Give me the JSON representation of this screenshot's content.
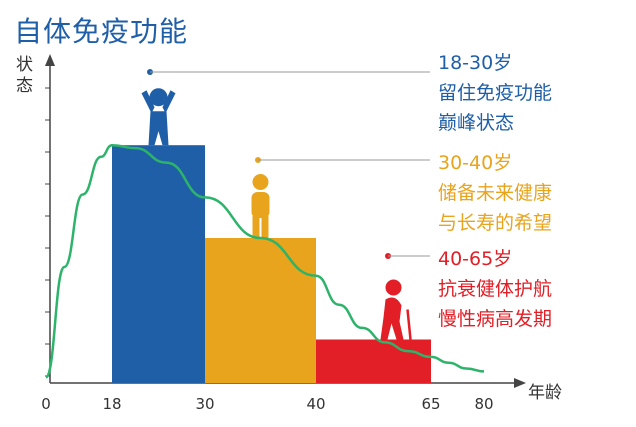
{
  "chart_data": {
    "type": "bar",
    "title": "自体免疫功能",
    "xlabel": "年龄",
    "ylabel": "状态",
    "xticks": [
      "0",
      "18",
      "30",
      "40",
      "65",
      "80"
    ],
    "xlim": [
      0,
      80
    ],
    "bars": [
      {
        "x_start": 18,
        "x_end": 30,
        "value": 0.82,
        "color": "#1f5fa8"
      },
      {
        "x_start": 30,
        "x_end": 40,
        "value": 0.5,
        "color": "#e8a41d"
      },
      {
        "x_start": 40,
        "x_end": 65,
        "value": 0.15,
        "color": "#e21e26"
      }
    ],
    "curve": {
      "color": "#2db36a",
      "x": [
        0,
        5,
        10,
        15,
        18,
        21,
        25,
        30,
        35,
        40,
        45,
        50,
        55,
        60,
        65,
        70,
        75,
        80
      ],
      "y": [
        0.02,
        0.4,
        0.65,
        0.78,
        0.82,
        0.81,
        0.76,
        0.64,
        0.5,
        0.37,
        0.27,
        0.19,
        0.14,
        0.11,
        0.09,
        0.07,
        0.05,
        0.04
      ]
    },
    "annotations": [
      {
        "color": "#1f5fa8",
        "lines": [
          "18-30岁",
          "留住免疫功能",
          "巅峰状态"
        ]
      },
      {
        "color": "#e8a41d",
        "lines": [
          "30-40岁",
          "储备未来健康",
          "与长寿的希望"
        ]
      },
      {
        "color": "#e21e26",
        "lines": [
          "40-65岁",
          "抗衰健体护航",
          "慢性病高发期"
        ]
      }
    ]
  }
}
